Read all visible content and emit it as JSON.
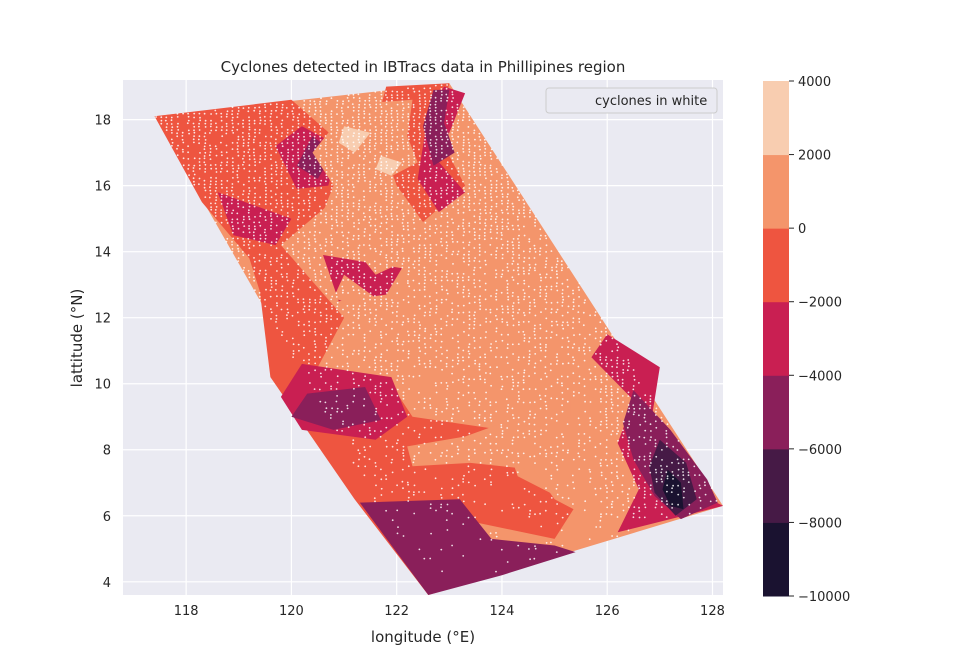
{
  "chart_data": {
    "type": "heatmap",
    "title": "Cyclones detected in IBTracs data in Phillipines region",
    "xlabel": "longitude (°E)",
    "ylabel": "lattitude (°N)",
    "xlim": [
      116.8,
      128.2
    ],
    "ylim": [
      3.6,
      19.2
    ],
    "xticks": [
      118,
      120,
      122,
      124,
      126,
      128
    ],
    "yticks": [
      4,
      6,
      8,
      10,
      12,
      14,
      16,
      18
    ],
    "grid": true,
    "legend": {
      "label": "cyclones in white",
      "position": "top-right"
    },
    "colorbar": {
      "levels": [
        -10000,
        -8000,
        -6000,
        -4000,
        -2000,
        0,
        2000,
        4000
      ],
      "tick_labels": [
        "−10000",
        "−8000",
        "−6000",
        "−4000",
        "−2000",
        "0",
        "2000",
        "4000"
      ],
      "colors": [
        "#1a1230",
        "#461a46",
        "#8a1f5a",
        "#c91f52",
        "#ee5540",
        "#f4956b",
        "#f8cdb0"
      ]
    },
    "domain_corners": [
      [
        117.4,
        18.1
      ],
      [
        123.0,
        19.1
      ],
      [
        128.2,
        6.3
      ],
      [
        122.6,
        3.6
      ]
    ],
    "regions": [
      {
        "level": 1,
        "polygon": [
          [
            117.4,
            18.1
          ],
          [
            123.0,
            19.1
          ],
          [
            128.2,
            6.3
          ],
          [
            122.6,
            3.6
          ]
        ]
      },
      {
        "level": 0,
        "polygon": [
          [
            117.4,
            18.1
          ],
          [
            120.0,
            18.6
          ],
          [
            121.5,
            16.5
          ],
          [
            119.8,
            14.2
          ],
          [
            121.0,
            12.0
          ],
          [
            120.5,
            10.5
          ],
          [
            121.8,
            10.2
          ],
          [
            122.3,
            9.0
          ],
          [
            124.0,
            8.6
          ],
          [
            124.3,
            7.2
          ],
          [
            125.4,
            6.3
          ],
          [
            125.0,
            5.3
          ],
          [
            123.5,
            5.8
          ],
          [
            122.6,
            3.6
          ],
          [
            121.2,
            6.5
          ],
          [
            119.6,
            10.2
          ],
          [
            119.4,
            12.8
          ],
          [
            119.2,
            13.8
          ],
          [
            118.3,
            15.5
          ]
        ]
      },
      {
        "level": 0,
        "polygon": [
          [
            121.8,
            19.0
          ],
          [
            123.0,
            19.1
          ],
          [
            122.8,
            17.5
          ],
          [
            123.3,
            16.0
          ],
          [
            122.5,
            14.9
          ],
          [
            122.0,
            16.0
          ],
          [
            121.6,
            17.8
          ]
        ]
      },
      {
        "level": -1,
        "polygon": [
          [
            126.0,
            11.5
          ],
          [
            127.0,
            10.5
          ],
          [
            126.8,
            8.5
          ],
          [
            127.6,
            6.8
          ],
          [
            128.2,
            6.3
          ],
          [
            126.2,
            5.5
          ],
          [
            126.6,
            6.8
          ],
          [
            126.2,
            8.2
          ],
          [
            126.5,
            9.5
          ],
          [
            125.7,
            10.8
          ]
        ]
      },
      {
        "level": -1,
        "polygon": [
          [
            122.9,
            19.0
          ],
          [
            123.3,
            18.8
          ],
          [
            123.0,
            17.6
          ],
          [
            122.7,
            16.9
          ],
          [
            123.3,
            15.8
          ],
          [
            122.8,
            15.2
          ],
          [
            122.4,
            16.2
          ],
          [
            122.5,
            17.2
          ],
          [
            122.6,
            18.3
          ]
        ]
      },
      {
        "level": -1,
        "polygon": [
          [
            120.2,
            17.8
          ],
          [
            120.9,
            17.2
          ],
          [
            120.7,
            16.0
          ],
          [
            120.1,
            15.9
          ],
          [
            119.7,
            17.2
          ]
        ]
      },
      {
        "level": -1,
        "polygon": [
          [
            118.6,
            15.8
          ],
          [
            120.0,
            15.0
          ],
          [
            119.7,
            14.2
          ],
          [
            118.9,
            14.5
          ]
        ]
      },
      {
        "level": -1,
        "polygon": [
          [
            120.6,
            13.9
          ],
          [
            122.1,
            13.5
          ],
          [
            121.8,
            12.7
          ],
          [
            120.9,
            12.5
          ]
        ]
      },
      {
        "level": -1,
        "polygon": [
          [
            120.2,
            10.6
          ],
          [
            121.9,
            10.2
          ],
          [
            122.2,
            9.0
          ],
          [
            121.6,
            8.3
          ],
          [
            120.2,
            8.6
          ],
          [
            119.8,
            9.6
          ]
        ]
      },
      {
        "level": -2,
        "polygon": [
          [
            126.5,
            9.8
          ],
          [
            127.2,
            8.6
          ],
          [
            127.9,
            7.1
          ],
          [
            128.1,
            6.4
          ],
          [
            127.4,
            5.9
          ],
          [
            126.9,
            6.6
          ],
          [
            126.5,
            7.7
          ],
          [
            126.3,
            8.8
          ]
        ]
      },
      {
        "level": -2,
        "polygon": [
          [
            122.6,
            3.6
          ],
          [
            121.3,
            6.4
          ],
          [
            123.2,
            6.5
          ],
          [
            123.8,
            5.3
          ],
          [
            125.0,
            5.1
          ],
          [
            125.4,
            4.9
          ],
          [
            124.0,
            4.2
          ]
        ]
      },
      {
        "level": -2,
        "polygon": [
          [
            120.3,
            9.7
          ],
          [
            121.4,
            9.9
          ],
          [
            121.7,
            8.9
          ],
          [
            120.8,
            8.6
          ],
          [
            120.0,
            9.0
          ]
        ]
      },
      {
        "level": -2,
        "polygon": [
          [
            122.7,
            18.9
          ],
          [
            123.0,
            18.9
          ],
          [
            122.9,
            17.9
          ],
          [
            123.1,
            17.0
          ],
          [
            122.7,
            16.6
          ],
          [
            122.5,
            17.8
          ]
        ]
      },
      {
        "level": -2,
        "polygon": [
          [
            120.4,
            17.5
          ],
          [
            120.8,
            17.0
          ],
          [
            120.5,
            16.2
          ],
          [
            120.1,
            16.6
          ]
        ]
      },
      {
        "level": -3,
        "polygon": [
          [
            127.0,
            8.3
          ],
          [
            127.5,
            7.6
          ],
          [
            127.7,
            6.5
          ],
          [
            127.3,
            6.0
          ],
          [
            126.9,
            6.7
          ],
          [
            126.8,
            7.5
          ]
        ]
      },
      {
        "level": -4,
        "polygon": [
          [
            127.15,
            7.4
          ],
          [
            127.4,
            7.0
          ],
          [
            127.45,
            6.2
          ],
          [
            127.2,
            6.3
          ],
          [
            127.05,
            6.8
          ]
        ]
      },
      {
        "level": 1,
        "polygon": [
          [
            121.4,
            18.5
          ],
          [
            122.3,
            18.6
          ],
          [
            122.2,
            17.5
          ],
          [
            122.4,
            16.7
          ],
          [
            121.8,
            16.2
          ],
          [
            122.3,
            15.2
          ],
          [
            121.9,
            14.4
          ],
          [
            122.4,
            13.9
          ],
          [
            121.6,
            13.3
          ],
          [
            121.1,
            14.3
          ],
          [
            120.5,
            14.8
          ],
          [
            120.8,
            16.0
          ],
          [
            120.4,
            17.0
          ],
          [
            120.9,
            18.0
          ]
        ]
      },
      {
        "level": 1,
        "polygon": [
          [
            123.2,
            13.9
          ],
          [
            124.2,
            13.2
          ],
          [
            123.8,
            12.5
          ],
          [
            122.9,
            12.9
          ]
        ]
      },
      {
        "level": 1,
        "polygon": [
          [
            121.0,
            13.3
          ],
          [
            121.6,
            12.6
          ],
          [
            121.3,
            12.3
          ],
          [
            120.8,
            12.6
          ]
        ]
      },
      {
        "level": 1,
        "polygon": [
          [
            124.4,
            12.4
          ],
          [
            125.4,
            12.0
          ],
          [
            125.4,
            11.0
          ],
          [
            124.8,
            10.2
          ],
          [
            124.3,
            10.9
          ]
        ]
      },
      {
        "level": 1,
        "polygon": [
          [
            122.2,
            11.9
          ],
          [
            123.2,
            11.6
          ],
          [
            123.0,
            10.3
          ],
          [
            122.5,
            9.6
          ],
          [
            122.0,
            10.4
          ]
        ]
      },
      {
        "level": 1,
        "polygon": [
          [
            123.1,
            11.0
          ],
          [
            123.6,
            10.8
          ],
          [
            123.3,
            9.5
          ],
          [
            122.9,
            9.8
          ]
        ]
      },
      {
        "level": 1,
        "polygon": [
          [
            125.3,
            9.8
          ],
          [
            126.1,
            9.4
          ],
          [
            126.1,
            8.0
          ],
          [
            126.2,
            6.8
          ],
          [
            125.6,
            6.0
          ],
          [
            125.0,
            6.5
          ],
          [
            124.6,
            7.4
          ],
          [
            123.4,
            7.6
          ],
          [
            122.3,
            7.5
          ],
          [
            122.2,
            8.1
          ],
          [
            123.3,
            8.4
          ],
          [
            124.0,
            8.8
          ],
          [
            124.8,
            8.7
          ],
          [
            125.3,
            9.0
          ]
        ]
      },
      {
        "level": 2,
        "polygon": [
          [
            121.0,
            17.8
          ],
          [
            121.5,
            17.6
          ],
          [
            121.2,
            17.0
          ],
          [
            120.9,
            17.3
          ]
        ]
      },
      {
        "level": 2,
        "polygon": [
          [
            121.7,
            16.9
          ],
          [
            122.1,
            16.7
          ],
          [
            121.9,
            16.3
          ],
          [
            121.6,
            16.5
          ]
        ]
      }
    ],
    "cyclone_points": {
      "color": "#ffffff",
      "count_shown": "dense",
      "lon_range": [
        117.4,
        128.2
      ],
      "lat_range": [
        3.6,
        19.1
      ]
    }
  }
}
